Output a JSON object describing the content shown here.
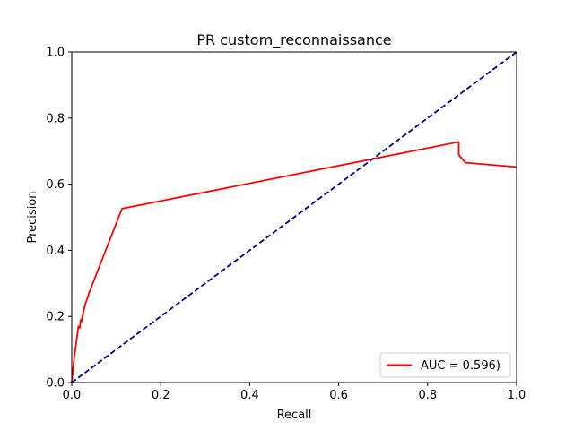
{
  "chart_data": {
    "type": "line",
    "title": "PR custom_reconnaissance",
    "xlabel": "Recall",
    "ylabel": "Precision",
    "xlim": [
      0.0,
      1.0
    ],
    "ylim": [
      0.0,
      1.0
    ],
    "xticks": [
      "0.0",
      "0.2",
      "0.4",
      "0.6",
      "0.8",
      "1.0"
    ],
    "yticks": [
      "0.0",
      "0.2",
      "0.4",
      "0.6",
      "0.8",
      "1.0"
    ],
    "grid": false,
    "legend_position": "lower-right",
    "series": [
      {
        "name": "AUC = 0.596)",
        "color": "#ff0000",
        "style": "solid",
        "x": [
          0.0,
          0.005,
          0.01,
          0.015,
          0.018,
          0.02,
          0.022,
          0.024,
          0.03,
          0.04,
          0.113,
          0.87,
          0.87,
          0.872,
          0.885,
          1.0
        ],
        "y": [
          0.0,
          0.07,
          0.12,
          0.17,
          0.165,
          0.19,
          0.185,
          0.2,
          0.235,
          0.275,
          0.526,
          0.728,
          0.69,
          0.685,
          0.665,
          0.652
        ]
      },
      {
        "name": "",
        "color": "#000080",
        "style": "dashed",
        "x": [
          0.0,
          1.0
        ],
        "y": [
          0.0,
          1.0
        ]
      }
    ]
  }
}
